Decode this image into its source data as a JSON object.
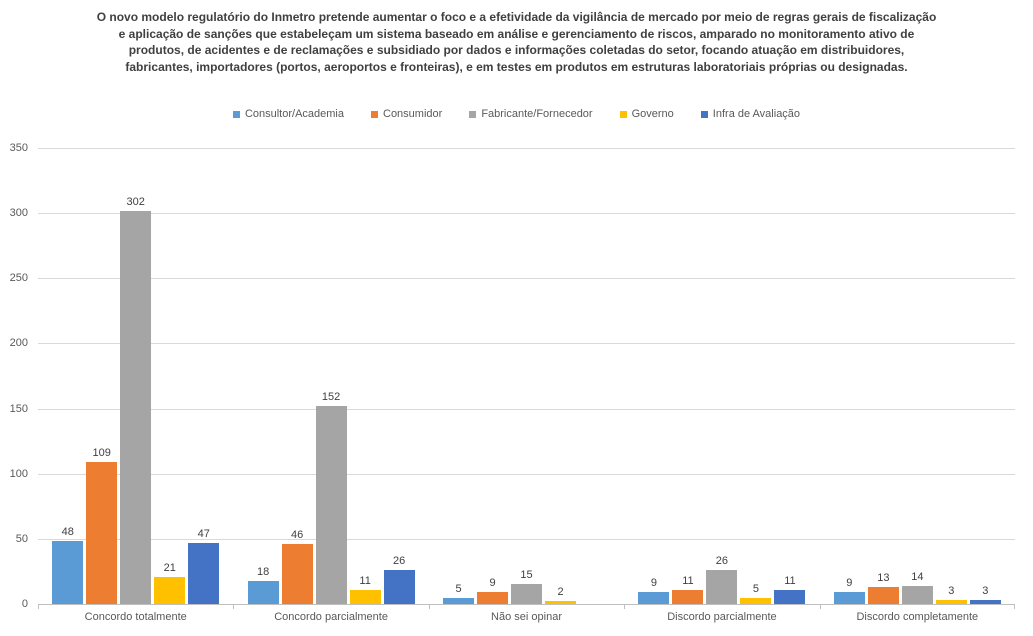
{
  "chart_data": {
    "type": "bar",
    "title": "O novo modelo regulatório do Inmetro pretende aumentar o foco e a efetividade da vigilância de mercado por meio de regras gerais de fiscalização e aplicação de sanções que estabeleçam um sistema baseado em análise e gerenciamento de riscos, amparado no monitoramento ativo de produtos, de acidentes e de reclamações e subsidiado por dados e informações coletadas do setor, focando atuação em distribuidores, fabricantes, importadores (portos, aeroportos e fronteiras), e em testes em produtos em estruturas laboratoriais próprias ou designadas.",
    "categories": [
      "Concordo totalmente",
      "Concordo parcialmente",
      "Não sei opinar",
      "Discordo parcialmente",
      "Discordo completamente"
    ],
    "series": [
      {
        "name": "Consultor/Academia",
        "color": "#5B9BD5",
        "values": [
          48,
          18,
          5,
          9,
          9
        ]
      },
      {
        "name": "Consumidor",
        "color": "#ED7D31",
        "values": [
          109,
          46,
          9,
          11,
          13
        ]
      },
      {
        "name": "Fabricante/Fornecedor",
        "color": "#A5A5A5",
        "values": [
          302,
          152,
          15,
          26,
          14
        ]
      },
      {
        "name": "Governo",
        "color": "#FFC000",
        "values": [
          21,
          11,
          2,
          5,
          3
        ]
      },
      {
        "name": "Infra de Avaliação",
        "color": "#4472C4",
        "values": [
          47,
          26,
          null,
          11,
          3
        ]
      }
    ],
    "xlabel": "",
    "ylabel": "",
    "ylim": [
      0,
      350
    ],
    "yticks": [
      0,
      50,
      100,
      150,
      200,
      250,
      300,
      350
    ],
    "grid": true,
    "legend_position": "top",
    "data_labels": true,
    "colors": {
      "title_text": "#404040",
      "axis_text": "#595959",
      "data_label_text": "#404040",
      "gridline": "#D9D9D9",
      "axis_line": "#BFBFBF",
      "background": "#FFFFFF"
    }
  }
}
